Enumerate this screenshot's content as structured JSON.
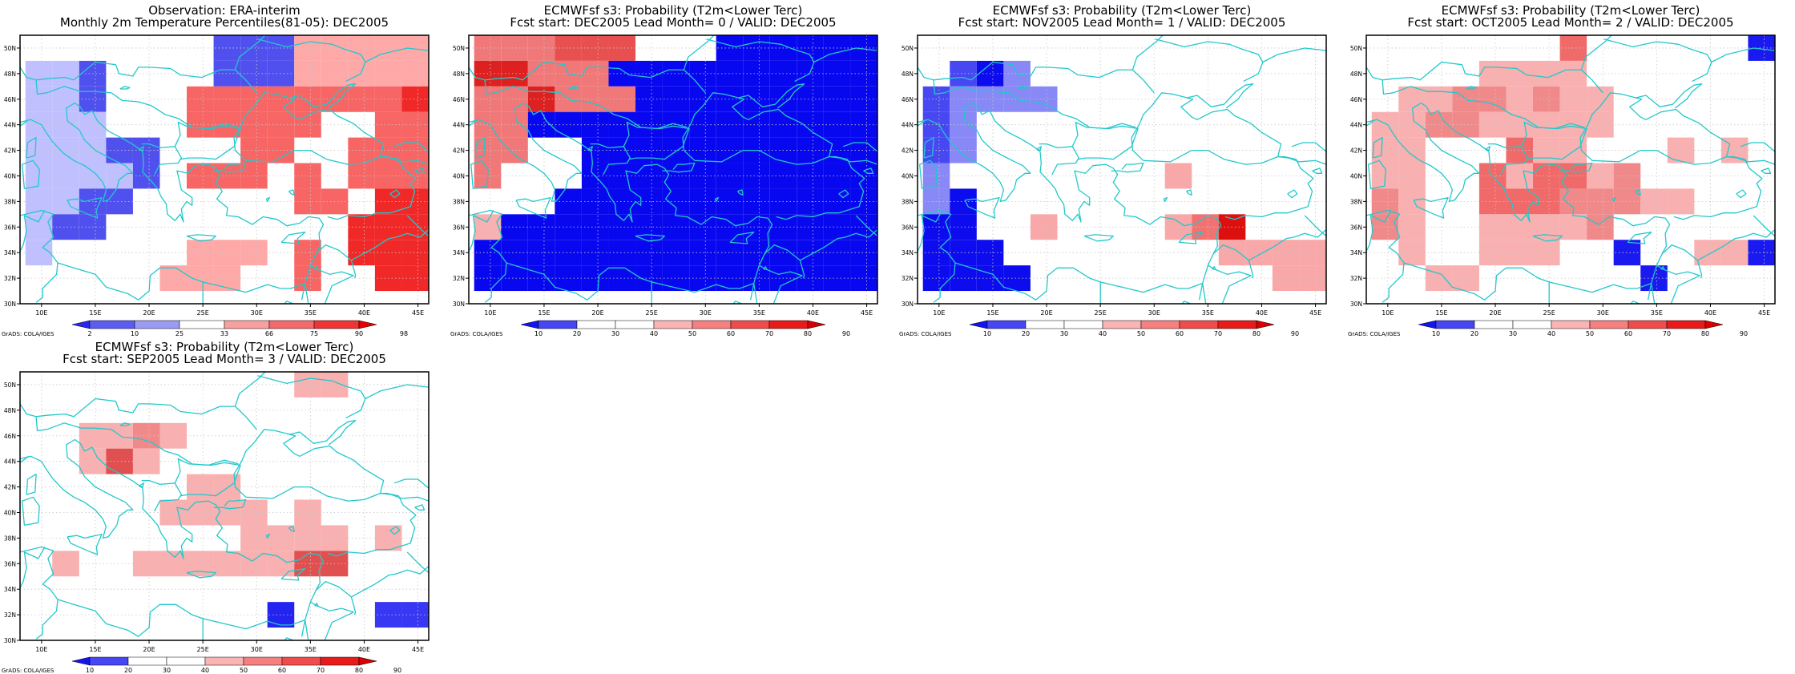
{
  "coast_color": "#22c8cc",
  "x_ticks": [
    "10E",
    "15E",
    "20E",
    "25E",
    "30E",
    "35E",
    "40E",
    "45E"
  ],
  "y_ticks": [
    "30N",
    "32N",
    "34N",
    "36N",
    "38N",
    "40N",
    "42N",
    "44N",
    "46N",
    "48N",
    "50N"
  ],
  "panels": [
    {
      "title_line1": "Observation: ERA-interim",
      "title_line2": "Monthly 2m Temperature Percentiles(81-05): DEC2005",
      "colorbar_labels": [
        "2",
        "10",
        "25",
        "33",
        "66",
        "75",
        "90",
        "98"
      ],
      "grads_label": "GrADS: COLA/IGES",
      "colorbar_colors": [
        "#2828ee",
        "#5c5cf2",
        "#9b9bf6",
        "#ffffff",
        "#f8a0a0",
        "#f26a6a",
        "#ee3434",
        "#e80000"
      ],
      "grid_colors": [
        "#ffffff",
        "#c0c0ff",
        "#5050ef",
        "#ffa8a8",
        "#f76565",
        "#f02828"
      ],
      "grid": [
        "000000022233333",
        "112000022233333",
        "112000444444445",
        "111000444440044",
        "111220004400444",
        "111120444040444",
        "112200000044055",
        "122000000000555",
        "100000333040555",
        "000003330040055"
      ]
    },
    {
      "title_line1": "ECMWFsf s3: Probability (T2m<Lower Terc)",
      "title_line2": "Fcst start: DEC2005  Lead Month= 0 / VALID: DEC2005",
      "colorbar_labels": [
        "10",
        "20",
        "30",
        "40",
        "50",
        "60",
        "70",
        "80",
        "90"
      ],
      "grads_label": "GrADS: COLA/IGES",
      "colorbar_colors": [
        "#1414f0",
        "#4646f5",
        "#ffffff",
        "#ffffff",
        "#fbb4b4",
        "#f68080",
        "#f04c4c",
        "#e81a1a",
        "#d80000"
      ],
      "grid_colors": [
        "#ffffff",
        "#0808f0",
        "#3434f4",
        "#f07878",
        "#e85050",
        "#dd2020",
        "#f8b0b0"
      ],
      "grid": [
        "333444000111111",
        "553331111111111",
        "335333111111111",
        "331111111111111",
        "330011111111111",
        "300011111111111",
        "000111111111111",
        "611111111111111",
        "111111111111111",
        "111111111111111"
      ]
    },
    {
      "title_line1": "ECMWFsf s3: Probability (T2m<Lower Terc)",
      "title_line2": "Fcst start: NOV2005  Lead Month= 1 / VALID: DEC2005",
      "colorbar_labels": [
        "10",
        "20",
        "30",
        "40",
        "50",
        "60",
        "70",
        "80",
        "90"
      ],
      "grads_label": "GrADS: COLA/IGES",
      "colorbar_colors": [
        "#1414f0",
        "#4646f5",
        "#ffffff",
        "#ffffff",
        "#fbb4b4",
        "#f68080",
        "#f04c4c",
        "#e81a1a",
        "#d80000"
      ],
      "grid_colors": [
        "#ffffff",
        "#4848f2",
        "#8888f6",
        "#0c0cee",
        "#f8a8a8",
        "#f27272",
        "#dd1010"
      ],
      "grid": [
        "000000000000000",
        "013200000000000",
        "122220000000000",
        "120000000000000",
        "120000000000000",
        "200000000400000",
        "230000000000000",
        "330040000456000",
        "333000000004444",
        "333300000000044"
      ]
    },
    {
      "title_line1": "ECMWFsf s3: Probability (T2m<Lower Terc)",
      "title_line2": "Fcst start: OCT2005  Lead Month= 2 / VALID: DEC2005",
      "colorbar_labels": [
        "10",
        "20",
        "30",
        "40",
        "50",
        "60",
        "70",
        "80",
        "90"
      ],
      "grads_label": "GrADS: COLA/IGES",
      "colorbar_colors": [
        "#1414f0",
        "#4646f5",
        "#ffffff",
        "#ffffff",
        "#fbb4b4",
        "#f68080",
        "#f04c4c",
        "#e81a1a",
        "#d80000"
      ],
      "grid_colors": [
        "#ffffff",
        "#f8b0b0",
        "#f08a8a",
        "#f06a6a",
        "#1a1af0"
      ],
      "grid": [
        "000000030000004",
        "000011110000000",
        "011221211000000",
        "112211111000000",
        "110003110001010",
        "110031331200000",
        "210033322211000",
        "210011112000000",
        "010011100400114",
        "001100000040000"
      ]
    },
    {
      "title_line1": "ECMWFsf s3: Probability (T2m<Lower Terc)",
      "title_line2": "Fcst start: SEP2005  Lead Month= 3 / VALID: DEC2005",
      "colorbar_labels": [
        "10",
        "20",
        "30",
        "40",
        "50",
        "60",
        "70",
        "80",
        "90"
      ],
      "grads_label": "GrADS: COLA/IGES",
      "colorbar_colors": [
        "#1414f0",
        "#4646f5",
        "#ffffff",
        "#ffffff",
        "#fbb4b4",
        "#f68080",
        "#f04c4c",
        "#e81a1a",
        "#d80000"
      ],
      "grid_colors": [
        "#ffffff",
        "#f8b0b0",
        "#f08a8a",
        "#e05050",
        "#2424f0",
        "#3838f4"
      ],
      "grid": [
        "000000000011000",
        "000000000000000",
        "001121000000000",
        "001310000000000",
        "000000110000000",
        "000001111010000",
        "000000001111010",
        "010011111133000",
        "000000000000000",
        "000000000400055"
      ]
    }
  ]
}
